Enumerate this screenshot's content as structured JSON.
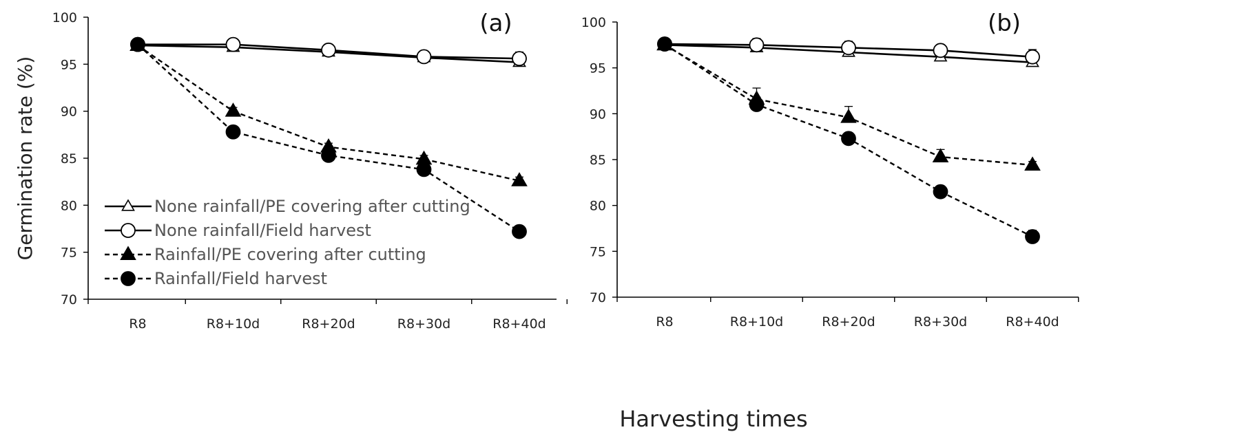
{
  "figure": {
    "ylabel": "Germination rate (%)",
    "xlabel": "Harvesting times"
  },
  "chart_data": [
    {
      "type": "line",
      "panel_label": "(a)",
      "categories": [
        "R8",
        "R8+10d",
        "R8+20d",
        "R8+30d",
        "R8+40d"
      ],
      "ylim": [
        70,
        100
      ],
      "yticks": [
        70,
        75,
        80,
        85,
        90,
        95,
        100
      ],
      "grid": false,
      "legend_position": "bottom-left",
      "series": [
        {
          "name": "None rainfall/PE covering after cutting",
          "style": "solid",
          "marker": "triangle-open",
          "values": [
            97.0,
            96.8,
            96.3,
            95.7,
            95.2
          ],
          "errors": [
            0.2,
            0.5,
            0.4,
            0.4,
            0.5
          ]
        },
        {
          "name": "None rainfall/Field harvest",
          "style": "solid",
          "marker": "circle-open",
          "values": [
            97.1,
            97.1,
            96.5,
            95.8,
            95.6
          ],
          "errors": [
            0.2,
            0.5,
            0.4,
            0.6,
            0.7
          ]
        },
        {
          "name": "Rainfall/PE covering after cutting",
          "style": "dashed",
          "marker": "triangle-filled",
          "values": [
            97.0,
            90.0,
            86.2,
            84.9,
            82.6
          ],
          "errors": [
            0.2,
            0.4,
            0.4,
            0.4,
            0.4
          ]
        },
        {
          "name": "Rainfall/Field harvest",
          "style": "dashed",
          "marker": "circle-filled",
          "values": [
            97.1,
            87.8,
            85.3,
            83.8,
            77.2
          ],
          "errors": [
            0.2,
            0.4,
            0.4,
            0.4,
            0.6
          ]
        }
      ]
    },
    {
      "type": "line",
      "panel_label": "(b)",
      "categories": [
        "R8",
        "R8+10d",
        "R8+20d",
        "R8+30d",
        "R8+40d"
      ],
      "ylim": [
        70,
        100
      ],
      "yticks": [
        70,
        75,
        80,
        85,
        90,
        95,
        100
      ],
      "grid": false,
      "legend_position": "none",
      "series": [
        {
          "name": "None rainfall/PE covering after cutting",
          "style": "solid",
          "marker": "triangle-open",
          "values": [
            97.5,
            97.2,
            96.7,
            96.2,
            95.6
          ],
          "errors": [
            0.2,
            0.5,
            0.5,
            0.7,
            0.8
          ]
        },
        {
          "name": "None rainfall/Field harvest",
          "style": "solid",
          "marker": "circle-open",
          "values": [
            97.6,
            97.5,
            97.2,
            96.9,
            96.2
          ],
          "errors": [
            0.2,
            0.7,
            0.7,
            0.5,
            0.8
          ]
        },
        {
          "name": "Rainfall/PE covering after cutting",
          "style": "dashed",
          "marker": "triangle-filled",
          "values": [
            97.5,
            91.6,
            89.6,
            85.3,
            84.4
          ],
          "errors": [
            0.2,
            1.2,
            1.2,
            0.8,
            0.4
          ]
        },
        {
          "name": "Rainfall/Field harvest",
          "style": "dashed",
          "marker": "circle-filled",
          "values": [
            97.6,
            91.0,
            87.3,
            81.5,
            76.6
          ],
          "errors": [
            0.2,
            0.8,
            0.5,
            0.4,
            0.7
          ]
        }
      ]
    }
  ]
}
